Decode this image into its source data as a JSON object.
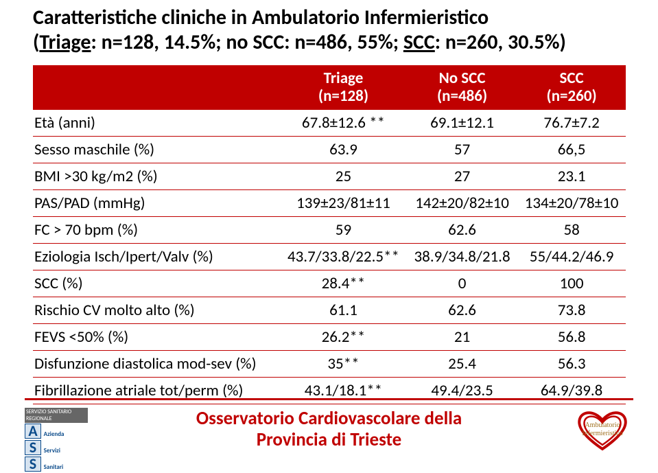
{
  "title": {
    "line1": "Caratteristiche cliniche in Ambulatorio Infermieristico",
    "line2_prefix": "(",
    "triage_u": "Triage",
    "line2_mid1": ": n=128, 14.5%; no SCC: n=486, 55%; ",
    "scc_u": "SCC",
    "line2_mid2": ": n=260, 30.5%)"
  },
  "table": {
    "header": {
      "blank": "",
      "col1_a": "Triage",
      "col1_b": "(n=128)",
      "col2_a": "No SCC",
      "col2_b": "(n=486)",
      "col3_a": "SCC",
      "col3_b": "(n=260)"
    },
    "rows": [
      {
        "label": "Età (anni)",
        "c1": "67.8±12.6 **",
        "c2": "69.1±12.1",
        "c3": "76.7±7.2"
      },
      {
        "label": "Sesso maschile (%)",
        "c1": "63.9",
        "c2": "57",
        "c3": "66,5"
      },
      {
        "label": "BMI >30 kg/m2 (%)",
        "c1": "25",
        "c2": "27",
        "c3": "23.1"
      },
      {
        "label": "PAS/PAD (mmHg)",
        "c1": "139±23/81±11",
        "c2": "142±20/82±10",
        "c3": "134±20/78±10"
      },
      {
        "label": "FC > 70 bpm (%)",
        "c1": "59",
        "c2": "62.6",
        "c3": "58"
      },
      {
        "label": "Eziologia Isch/Ipert/Valv (%)",
        "c1": "43.7/33.8/22.5**",
        "c2": "38.9/34.8/21.8",
        "c3": "55/44.2/46.9"
      },
      {
        "label": "SCC (%)",
        "c1": "28.4**",
        "c2": "0",
        "c3": "100"
      },
      {
        "label": "Rischio CV molto alto (%)",
        "c1": "61.1",
        "c2": "62.6",
        "c3": "73.8"
      },
      {
        "label": "FEVS <50% (%)",
        "c1": "26.2**",
        "c2": "21",
        "c3": "56.8"
      },
      {
        "label": "Disfunzione diastolica mod-sev (%)",
        "c1": "35**",
        "c2": "25.4",
        "c3": "56.3"
      },
      {
        "label": "Fibrillazione atriale tot/perm (%)",
        "c1": "43.1/18.1**",
        "c2": "49.4/23.5",
        "c3": "64.9/39.8"
      }
    ]
  },
  "footer": {
    "line1": "Osservatorio Cardiovascolare della",
    "line2": "Provincia di Trieste",
    "left_bar": "SERVIZIO SANITARIO REGIONALE",
    "left_a": "Azienda",
    "left_s1": "Servizi",
    "left_s2": "Sanitari",
    "right_a": "Ambulatorio",
    "right_b": "Infermieristico"
  },
  "colors": {
    "brand_red": "#c00000",
    "white": "#ffffff",
    "black": "#000000"
  }
}
